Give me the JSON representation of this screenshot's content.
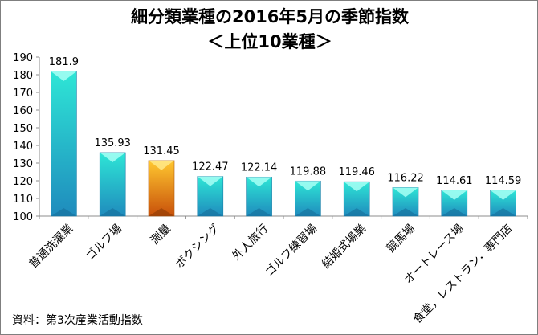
{
  "chart_data": {
    "type": "bar",
    "title": "細分類業種の2016年5月の季節指数",
    "subtitle": "＜上位10業種＞",
    "categories": [
      "普通洗濯業",
      "ゴルフ場",
      "測量",
      "ボクシング",
      "外人旅行",
      "ゴルフ練習場",
      "結婚式場業",
      "競馬場",
      "オートレース場",
      "食堂，レストラン，専門店"
    ],
    "values": [
      181.9,
      135.93,
      131.45,
      122.47,
      122.14,
      119.88,
      119.46,
      116.22,
      114.61,
      114.59
    ],
    "value_labels": [
      "181.9",
      "135.93",
      "131.45",
      "122.47",
      "122.14",
      "119.88",
      "119.46",
      "116.22",
      "114.61",
      "114.59"
    ],
    "highlight_index": 2,
    "ylim": [
      100,
      190
    ],
    "yticks": [
      100,
      110,
      120,
      130,
      140,
      150,
      160,
      170,
      180,
      190
    ],
    "colors": {
      "bar_top": "#2ee6d6",
      "bar_bottom": "#1f8bbd",
      "highlight_top": "#ffc830",
      "highlight_bottom": "#c8500a",
      "axis": "#8c8c8c"
    },
    "xlabel": "",
    "ylabel": "",
    "grid": false,
    "legend": "none"
  },
  "source": "資料：第3次産業活動指数"
}
